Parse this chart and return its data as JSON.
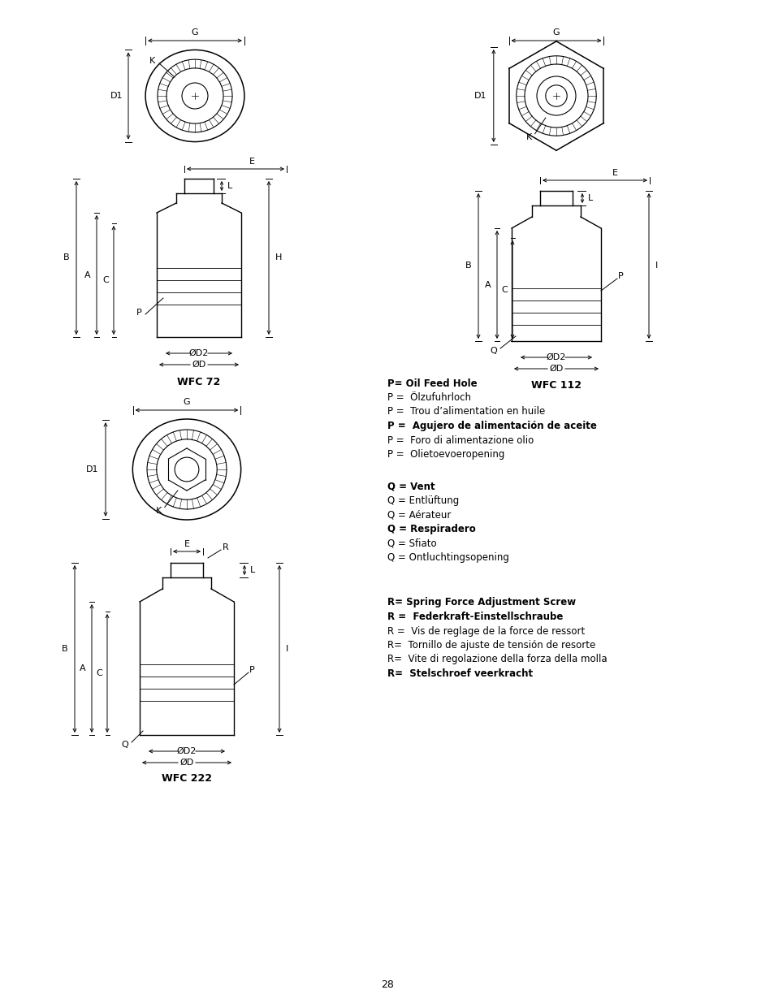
{
  "page_number": "28",
  "bg": "#ffffff",
  "p_lines": [
    [
      "P= Oil Feed Hole",
      true
    ],
    [
      "P =  Ölzufuhrloch",
      false
    ],
    [
      "P =  Trou d’alimentation en huile",
      false
    ],
    [
      "P =  Agujero de alimentación de aceite",
      true
    ],
    [
      "P =  Foro di alimentazione olio",
      false
    ],
    [
      "P =  Olietoevoeropening",
      false
    ]
  ],
  "q_lines": [
    [
      "Q = Vent",
      true
    ],
    [
      "Q = Entlüftung",
      false
    ],
    [
      "Q = Aérateur",
      false
    ],
    [
      "Q = Respiradero",
      true
    ],
    [
      "Q = Sfiato",
      false
    ],
    [
      "Q = Ontluchtingsopening",
      false
    ]
  ],
  "r_lines": [
    [
      "R= Spring Force Adjustment Screw",
      true
    ],
    [
      "R =  Federkraft-Einstellschraube",
      true
    ],
    [
      "R =  Vis de reglage de la force de ressort",
      false
    ],
    [
      "R=  Tornillo de ajuste de tensión de resorte",
      false
    ],
    [
      "R=  Vite di regolazione della forza della molla",
      false
    ],
    [
      "R=  Stelschroef veerkracht",
      true
    ]
  ],
  "wfc72_label": "WFC 72",
  "wfc112_label": "WFC 112",
  "wfc222_label": "WFC 222"
}
